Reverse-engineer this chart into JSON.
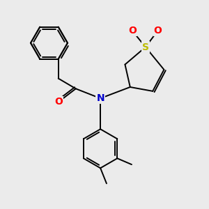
{
  "background_color": "#ebebeb",
  "atom_colors": {
    "C": "#000000",
    "N": "#0000cc",
    "O": "#ff0000",
    "S": "#bbbb00"
  },
  "bond_color": "#000000",
  "bond_width": 1.4,
  "figsize": [
    3.0,
    3.0
  ],
  "dpi": 100,
  "xlim": [
    0,
    10
  ],
  "ylim": [
    0,
    10
  ]
}
